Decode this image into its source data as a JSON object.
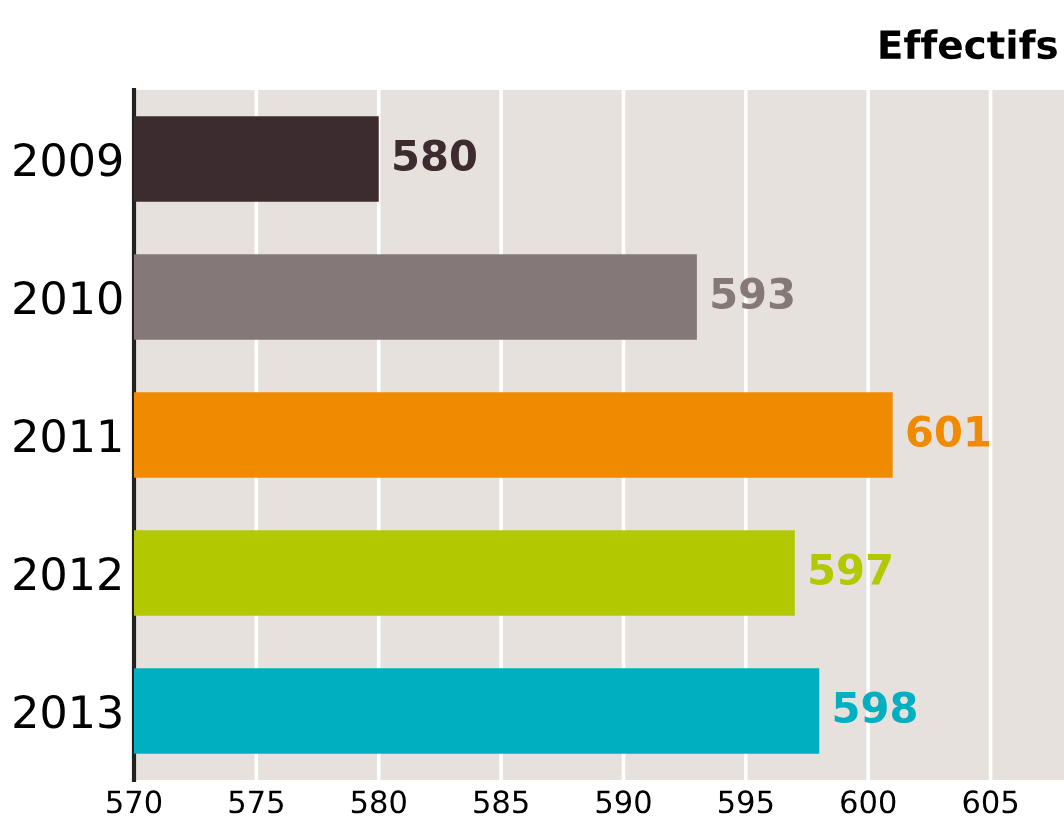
{
  "chart_data": {
    "type": "bar",
    "orientation": "horizontal",
    "title": "Effectifs",
    "categories": [
      "2009",
      "2010",
      "2011",
      "2012",
      "2013"
    ],
    "values": [
      580,
      593,
      601,
      597,
      598
    ],
    "colors": [
      "#3d2c2f",
      "#857878",
      "#f08a00",
      "#b2c800",
      "#00afc0"
    ],
    "xlim": [
      570,
      608
    ],
    "xticks": [
      570,
      575,
      580,
      585,
      590,
      595,
      600,
      605
    ],
    "grid": "x",
    "data_labels": true
  }
}
